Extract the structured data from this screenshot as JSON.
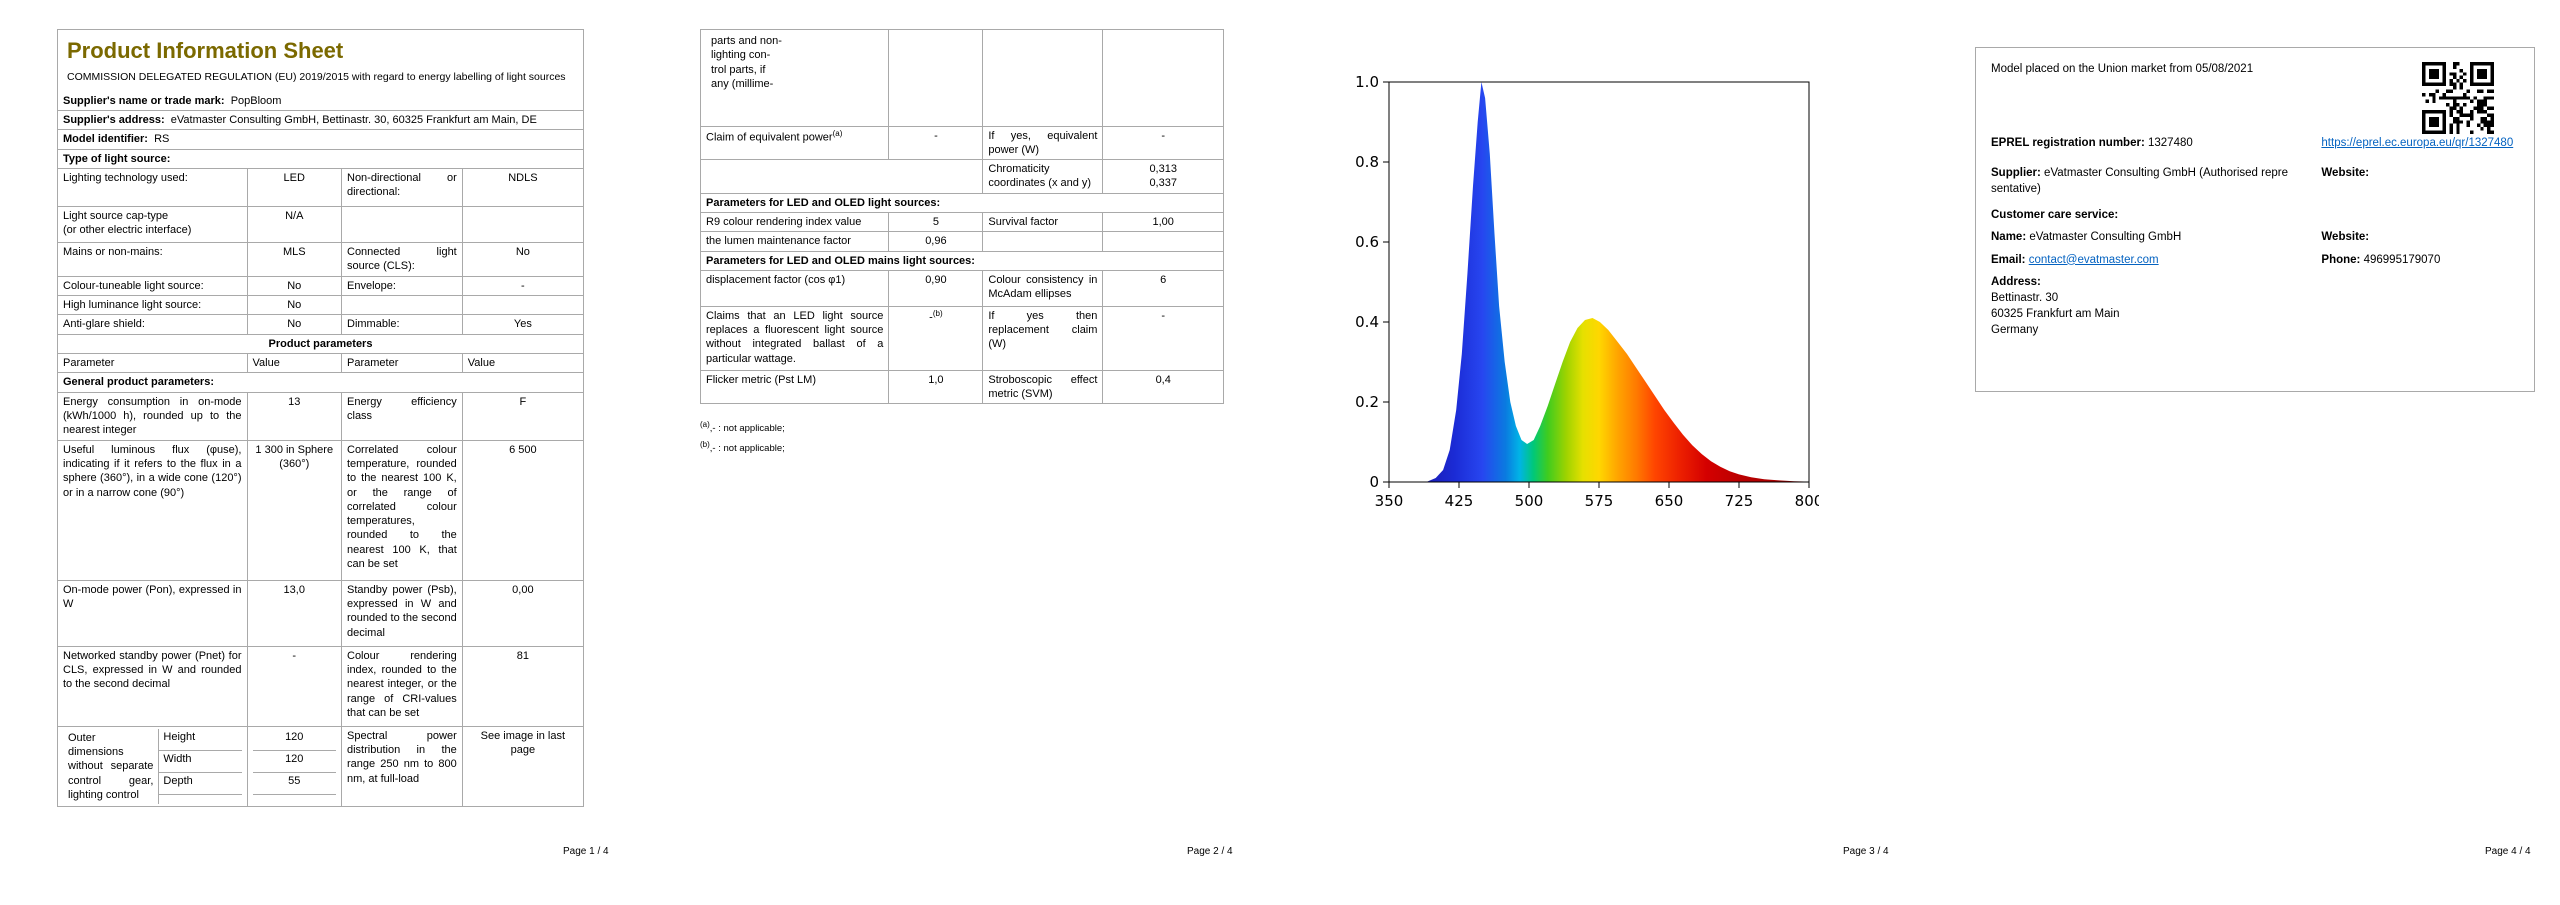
{
  "page1": {
    "title": "Product Information Sheet",
    "subtitle": "COMMISSION DELEGATED REGULATION (EU) 2019/2015 with regard to energy labelling of light sources",
    "supplier_name_label": "Supplier's name or trade mark:",
    "supplier_name_value": "PopBloom",
    "supplier_address_label": "Supplier's address:",
    "supplier_address_value": "eVatmaster Consulting GmbH, Bettinastr. 30, 60325 Frankfurt am Main, DE",
    "model_id_label": "Model identifier:",
    "model_id_value": "RS",
    "type_header": "Type of light source:",
    "lighting_tech_label": "Lighting technology used:",
    "lighting_tech_value": "LED",
    "directional_label": "Non-directional or directional:",
    "directional_value": "NDLS",
    "cap_type_label": "Light source cap-type\n(or other electric interface)",
    "cap_type_value": "N/A",
    "mains_label": "Mains or non-mains:",
    "mains_value": "MLS",
    "cls_label": "Connected light source (CLS):",
    "cls_value": "No",
    "tuneable_label": "Colour-tuneable light source:",
    "tuneable_value": "No",
    "envelope_label": "Envelope:",
    "envelope_value": "-",
    "high_lum_label": "High luminance light source:",
    "high_lum_value": "No",
    "antiglare_label": "Anti-glare shield:",
    "antiglare_value": "No",
    "dimmable_label": "Dimmable:",
    "dimmable_value": "Yes",
    "product_params_header": "Product parameters",
    "param_col1": "Parameter",
    "value_col1": "Value",
    "param_col2": "Parameter",
    "value_col2": "Value",
    "general_header": "General product parameters:",
    "energy_label": "Energy consumption in on-mode (kWh/1000 h), rounded up to the nearest integer",
    "energy_value": "13",
    "eff_class_label": "Energy efficiency class",
    "eff_class_value": "F",
    "flux_label": "Useful luminous flux (φuse), indicating if it refers to the flux in a sphere (360°), in a wide cone (120°) or in a narrow cone (90°)",
    "flux_value": "1 300 in Sphere (360°)",
    "cct_label": "Correlated colour temperature, rounded to the nearest 100 K, or the range of correlated colour temperatures, rounded to the nearest 100 K, that can be set",
    "cct_value": "6 500",
    "onmode_label": "On-mode power (Pon), expressed in W",
    "onmode_value": "13,0",
    "standby_label": "Standby power (Psb), expressed in W and rounded to the second decimal",
    "standby_value": "0,00",
    "net_standby_label": "Networked standby power (Pnet) for CLS, expressed in W and rounded to the second decimal",
    "net_standby_value": "-",
    "cri_label": "Colour rendering index, rounded to the nearest integer, or the range of CRI-values that can be set",
    "cri_value": "81",
    "dims_label": "Outer dimensions without separate control gear, lighting control",
    "dim_height_label": "Height",
    "dim_height_value": "120",
    "dim_width_label": "Width",
    "dim_width_value": "120",
    "dim_depth_label": "Depth",
    "dim_depth_value": "55",
    "spd_label": "Spectral power distribution in the range 250 nm to 800 nm, at full-load",
    "spd_value": "See image in last page",
    "footer": "Page 1 / 4"
  },
  "page2": {
    "continuation_text": "parts and non-\nlighting con-\ntrol parts, if\nany (millime-",
    "claim_label": "Claim of equivalent power",
    "claim_sup": "(a)",
    "claim_value": "-",
    "equiv_power_label": "If yes, equivalent power (W)",
    "equiv_power_value": "-",
    "chromaticity_label": "Chromaticity coordinates (x and y)",
    "chromaticity_value": "0,313\n0,337",
    "led_header": "Parameters for LED and OLED light sources:",
    "r9_label": "R9 colour rendering index value",
    "r9_value": "5",
    "survival_label": "Survival factor",
    "survival_value": "1,00",
    "lumen_label": "the lumen maintenance factor",
    "lumen_value": "0,96",
    "mains_header": "Parameters for LED and OLED mains light sources:",
    "displacement_label": "displacement factor (cos φ1)",
    "displacement_value": "0,90",
    "consistency_label": "Colour consistency in McAdam ellipses",
    "consistency_value": "6",
    "claims_fluorescent_label": "Claims that an LED light source replaces a fluorescent light source without integrated ballast of a particular wattage.",
    "claims_fluorescent_value": "-",
    "claims_fluorescent_sup": "(b)",
    "replacement_label": "If yes then replacement claim (W)",
    "replacement_value": "-",
    "flicker_label": "Flicker metric (Pst LM)",
    "flicker_value": "1,0",
    "svm_label": "Stroboscopic effect metric (SVM)",
    "svm_value": "0,4",
    "footnote_a_sup": "(a)",
    "footnote_a_text": ",- : not applicable;",
    "footnote_b_sup": "(b)",
    "footnote_b_text": ",- : not applicable;",
    "footer": "Page 2 / 4"
  },
  "page3": {
    "footer": "Page 3 / 4"
  },
  "chart_data": {
    "type": "area",
    "title": "",
    "xlabel": "",
    "ylabel": "",
    "xlim": [
      350,
      800
    ],
    "ylim": [
      0,
      1.0
    ],
    "xticks": [
      350,
      425,
      500,
      575,
      650,
      725,
      800
    ],
    "yticks": [
      0,
      0.2,
      0.4,
      0.6,
      0.8,
      1.0
    ],
    "grid": false,
    "legend": false,
    "points": [
      [
        350,
        0
      ],
      [
        390,
        0
      ],
      [
        400,
        0.01
      ],
      [
        408,
        0.03
      ],
      [
        415,
        0.08
      ],
      [
        422,
        0.18
      ],
      [
        428,
        0.32
      ],
      [
        434,
        0.52
      ],
      [
        440,
        0.74
      ],
      [
        445,
        0.9
      ],
      [
        449,
        1.0
      ],
      [
        453,
        0.96
      ],
      [
        458,
        0.82
      ],
      [
        463,
        0.62
      ],
      [
        468,
        0.44
      ],
      [
        474,
        0.3
      ],
      [
        480,
        0.2
      ],
      [
        486,
        0.14
      ],
      [
        492,
        0.105
      ],
      [
        498,
        0.095
      ],
      [
        505,
        0.105
      ],
      [
        512,
        0.14
      ],
      [
        520,
        0.19
      ],
      [
        528,
        0.245
      ],
      [
        536,
        0.3
      ],
      [
        544,
        0.35
      ],
      [
        552,
        0.385
      ],
      [
        560,
        0.405
      ],
      [
        568,
        0.41
      ],
      [
        576,
        0.4
      ],
      [
        585,
        0.38
      ],
      [
        595,
        0.35
      ],
      [
        605,
        0.32
      ],
      [
        615,
        0.285
      ],
      [
        625,
        0.25
      ],
      [
        635,
        0.215
      ],
      [
        645,
        0.18
      ],
      [
        655,
        0.148
      ],
      [
        665,
        0.118
      ],
      [
        675,
        0.092
      ],
      [
        685,
        0.07
      ],
      [
        695,
        0.052
      ],
      [
        705,
        0.038
      ],
      [
        715,
        0.027
      ],
      [
        725,
        0.019
      ],
      [
        738,
        0.012
      ],
      [
        752,
        0.007
      ],
      [
        768,
        0.004
      ],
      [
        784,
        0.002
      ],
      [
        800,
        0.001
      ]
    ],
    "gradient_stops": [
      [
        350,
        "#1a0a8c"
      ],
      [
        420,
        "#1b2bd5"
      ],
      [
        450,
        "#2746f0"
      ],
      [
        475,
        "#0a7be0"
      ],
      [
        490,
        "#00b4e6"
      ],
      [
        505,
        "#00c878"
      ],
      [
        520,
        "#3fcc1f"
      ],
      [
        540,
        "#9ed300"
      ],
      [
        558,
        "#e6e000"
      ],
      [
        575,
        "#ffd700"
      ],
      [
        595,
        "#ffa500"
      ],
      [
        615,
        "#ff7a00"
      ],
      [
        635,
        "#ff4500"
      ],
      [
        660,
        "#ee2200"
      ],
      [
        690,
        "#d40000"
      ],
      [
        730,
        "#b80000"
      ],
      [
        800,
        "#990000"
      ]
    ]
  },
  "page4": {
    "market_line": "Model placed on the Union market from 05/08/2021",
    "eprel_label": "EPREL registration number:",
    "eprel_value": "1327480",
    "eprel_link": "https://eprel.ec.europa.eu/qr/1327480",
    "supplier_label": "Supplier:",
    "supplier_value": "eVatmaster Consulting GmbH (Authorised repre sentative)",
    "website_label": "Website:",
    "care_header": "Customer care service:",
    "name_label": "Name:",
    "name_value": "eVatmaster Consulting GmbH",
    "website2_label": "Website:",
    "email_label": "Email:",
    "email_value": "contact@evatmaster.com",
    "phone_label": "Phone:",
    "phone_value": "496995179070",
    "address_label": "Address:",
    "address_lines": "Bettinastr. 30\n60325 Frankfurt am Main\nGermany",
    "footer": "Page 4 / 4"
  },
  "colors": {
    "title": "#7b6900",
    "link": "#0563c1",
    "grid_line": "#a9a9a9"
  }
}
